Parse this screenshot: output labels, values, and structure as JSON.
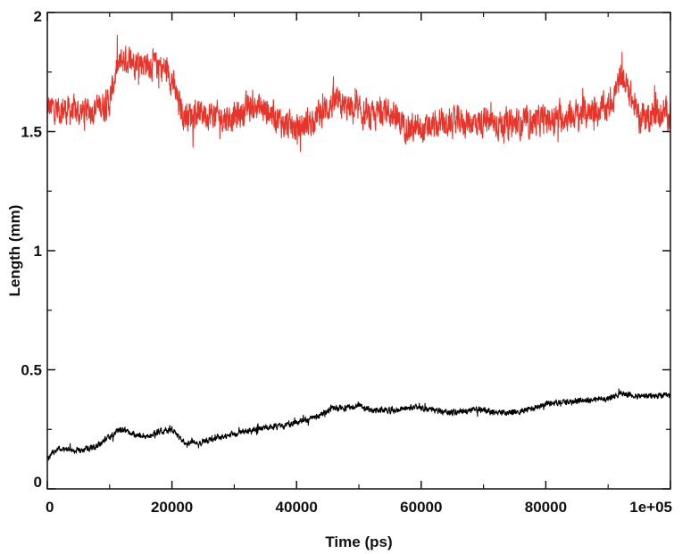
{
  "chart_data": {
    "type": "line",
    "title": "",
    "xlabel": "Time (ps)",
    "ylabel": "Length (mm)",
    "xlim": [
      0,
      100000
    ],
    "ylim": [
      0,
      2
    ],
    "grid": false,
    "x_ticks": [
      {
        "value": 0,
        "label": "0"
      },
      {
        "value": 20000,
        "label": "20000"
      },
      {
        "value": 40000,
        "label": "40000"
      },
      {
        "value": 60000,
        "label": "60000"
      },
      {
        "value": 80000,
        "label": "80000"
      },
      {
        "value": 100000,
        "label": "1e+05"
      }
    ],
    "y_ticks": [
      {
        "value": 0,
        "label": "0"
      },
      {
        "value": 0.5,
        "label": "0.5"
      },
      {
        "value": 1,
        "label": "1"
      },
      {
        "value": 1.5,
        "label": "1.5"
      },
      {
        "value": 2,
        "label": "2"
      }
    ],
    "series": [
      {
        "color": "#e8352b",
        "noise": 0.055,
        "x": [
          0,
          3000,
          5000,
          8000,
          10000,
          11000,
          12000,
          14000,
          16000,
          18000,
          19000,
          20000,
          21000,
          22000,
          25000,
          28000,
          30000,
          33000,
          36000,
          38000,
          40000,
          42000,
          44000,
          46000,
          48000,
          50000,
          52000,
          54000,
          56000,
          58000,
          60000,
          62000,
          64000,
          66000,
          70000,
          75000,
          80000,
          85000,
          88000,
          90000,
          91000,
          92000,
          93000,
          94000,
          95000,
          97000,
          100000
        ],
        "y": [
          1.6,
          1.59,
          1.58,
          1.6,
          1.62,
          1.75,
          1.8,
          1.8,
          1.79,
          1.77,
          1.76,
          1.72,
          1.62,
          1.57,
          1.58,
          1.56,
          1.56,
          1.61,
          1.58,
          1.53,
          1.51,
          1.54,
          1.58,
          1.62,
          1.6,
          1.58,
          1.55,
          1.6,
          1.55,
          1.52,
          1.5,
          1.52,
          1.53,
          1.54,
          1.54,
          1.53,
          1.55,
          1.57,
          1.59,
          1.6,
          1.66,
          1.72,
          1.7,
          1.62,
          1.56,
          1.57,
          1.58
        ]
      },
      {
        "color": "#000000",
        "noise": 0.011,
        "x": [
          0,
          1000,
          2000,
          5000,
          8000,
          10000,
          12000,
          14000,
          16000,
          18000,
          20000,
          22000,
          25000,
          28000,
          30000,
          33000,
          35000,
          38000,
          40000,
          43000,
          46000,
          48000,
          50000,
          52000,
          55000,
          58000,
          60000,
          62000,
          65000,
          68000,
          70000,
          72000,
          75000,
          78000,
          80000,
          85000,
          90000,
          92000,
          95000,
          100000
        ],
        "y": [
          0.13,
          0.16,
          0.17,
          0.16,
          0.18,
          0.22,
          0.25,
          0.23,
          0.22,
          0.24,
          0.25,
          0.19,
          0.2,
          0.22,
          0.23,
          0.25,
          0.26,
          0.26,
          0.28,
          0.3,
          0.34,
          0.34,
          0.35,
          0.33,
          0.33,
          0.34,
          0.34,
          0.33,
          0.32,
          0.33,
          0.33,
          0.32,
          0.32,
          0.34,
          0.36,
          0.37,
          0.38,
          0.4,
          0.39,
          0.39
        ]
      }
    ]
  }
}
